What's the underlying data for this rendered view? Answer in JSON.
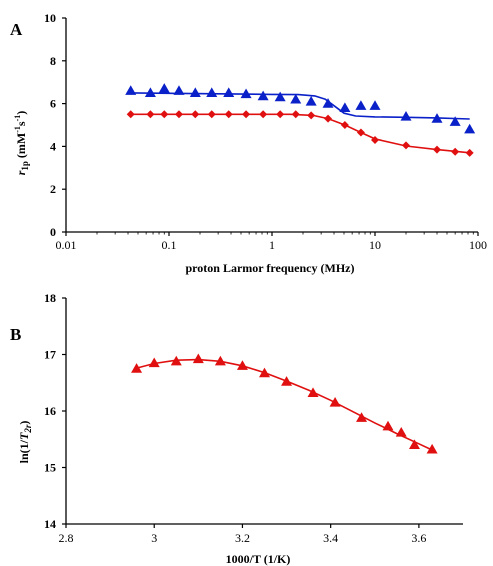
{
  "colors": {
    "blue": "#0a20c8",
    "red": "#e01010",
    "axis": "#000000"
  },
  "chart_data": [
    {
      "panel": "A",
      "type": "scatter",
      "xscale": "log",
      "xlim": [
        0.01,
        100
      ],
      "ylim": [
        0,
        10
      ],
      "xticks": [
        "0.01",
        "0.1",
        "1",
        "10",
        "100"
      ],
      "xtick_values": [
        0.01,
        0.1,
        1,
        10,
        100
      ],
      "yticks": [
        "0",
        "2",
        "4",
        "6",
        "8",
        "10"
      ],
      "ytick_values": [
        0,
        2,
        4,
        6,
        8,
        10
      ],
      "xlabel": "proton Larmor frequency (MHz)",
      "ylabel_main": "r",
      "ylabel_sub": "1p",
      "ylabel_unit": " (mM",
      "ylabel_sup1": "-1",
      "ylabel_mid": "s",
      "ylabel_sup2": "-1",
      "ylabel_end": ")",
      "grid": false,
      "series": [
        {
          "color": "blue",
          "marker": "triangle",
          "x": [
            0.0425,
            0.066,
            0.09,
            0.125,
            0.18,
            0.26,
            0.38,
            0.56,
            0.82,
            1.2,
            1.7,
            2.4,
            3.5,
            5.1,
            7.3,
            10,
            20,
            40,
            60,
            83
          ],
          "y": [
            6.6,
            6.5,
            6.7,
            6.6,
            6.5,
            6.5,
            6.5,
            6.45,
            6.35,
            6.3,
            6.2,
            6.1,
            6.0,
            5.8,
            5.9,
            5.9,
            5.4,
            5.3,
            5.15,
            4.8
          ],
          "fit_x": [
            0.0425,
            0.1,
            0.3,
            1,
            1.8,
            2.6,
            3.3,
            4.0,
            5.0,
            6.5,
            10,
            20,
            40,
            83
          ],
          "fit_y": [
            6.5,
            6.48,
            6.46,
            6.43,
            6.42,
            6.36,
            6.2,
            5.9,
            5.55,
            5.42,
            5.38,
            5.36,
            5.33,
            5.28
          ]
        },
        {
          "color": "red",
          "marker": "diamond",
          "x": [
            0.0425,
            0.066,
            0.09,
            0.125,
            0.18,
            0.26,
            0.38,
            0.56,
            0.82,
            1.2,
            1.7,
            2.4,
            3.5,
            5.1,
            7.3,
            10,
            20,
            40,
            60,
            83
          ],
          "y": [
            5.5,
            5.5,
            5.5,
            5.5,
            5.5,
            5.5,
            5.5,
            5.5,
            5.5,
            5.5,
            5.5,
            5.45,
            5.3,
            5.0,
            4.65,
            4.3,
            4.05,
            3.85,
            3.75,
            3.7
          ],
          "fit_x": [
            0.0425,
            0.5,
            1.5,
            2.5,
            3.5,
            5.1,
            7.3,
            10,
            20,
            40,
            60,
            83
          ],
          "fit_y": [
            5.5,
            5.5,
            5.5,
            5.45,
            5.3,
            5.0,
            4.65,
            4.35,
            4.02,
            3.85,
            3.77,
            3.7
          ]
        }
      ]
    },
    {
      "panel": "B",
      "type": "scatter",
      "xlim": [
        2.8,
        3.7
      ],
      "ylim": [
        14,
        18
      ],
      "xticks": [
        "2.8",
        "3",
        "3.2",
        "3.4",
        "3.6"
      ],
      "xtick_values": [
        2.8,
        3.0,
        3.2,
        3.4,
        3.6
      ],
      "yticks": [
        "14",
        "15",
        "16",
        "17",
        "18"
      ],
      "ytick_values": [
        14,
        15,
        16,
        17,
        18
      ],
      "xlabel": "1000/T (1/K)",
      "ylabel_main": "ln(1/",
      "ylabel_italic": "T",
      "ylabel_sub": "2r",
      "ylabel_end": ")",
      "grid": false,
      "series": [
        {
          "color": "red",
          "marker": "triangle",
          "x": [
            2.96,
            3.0,
            3.05,
            3.1,
            3.15,
            3.2,
            3.25,
            3.3,
            3.36,
            3.41,
            3.47,
            3.53,
            3.56,
            3.59,
            3.63
          ],
          "y": [
            16.75,
            16.85,
            16.88,
            16.92,
            16.88,
            16.8,
            16.67,
            16.52,
            16.32,
            16.15,
            15.88,
            15.73,
            15.62,
            15.4,
            15.32
          ],
          "fit_x": [
            2.96,
            3.0,
            3.05,
            3.1,
            3.15,
            3.2,
            3.25,
            3.3,
            3.35,
            3.4,
            3.45,
            3.5,
            3.55,
            3.6,
            3.63
          ],
          "fit_y": [
            16.76,
            16.84,
            16.9,
            16.91,
            16.88,
            16.8,
            16.68,
            16.53,
            16.37,
            16.19,
            15.99,
            15.79,
            15.6,
            15.42,
            15.31
          ]
        }
      ]
    }
  ]
}
